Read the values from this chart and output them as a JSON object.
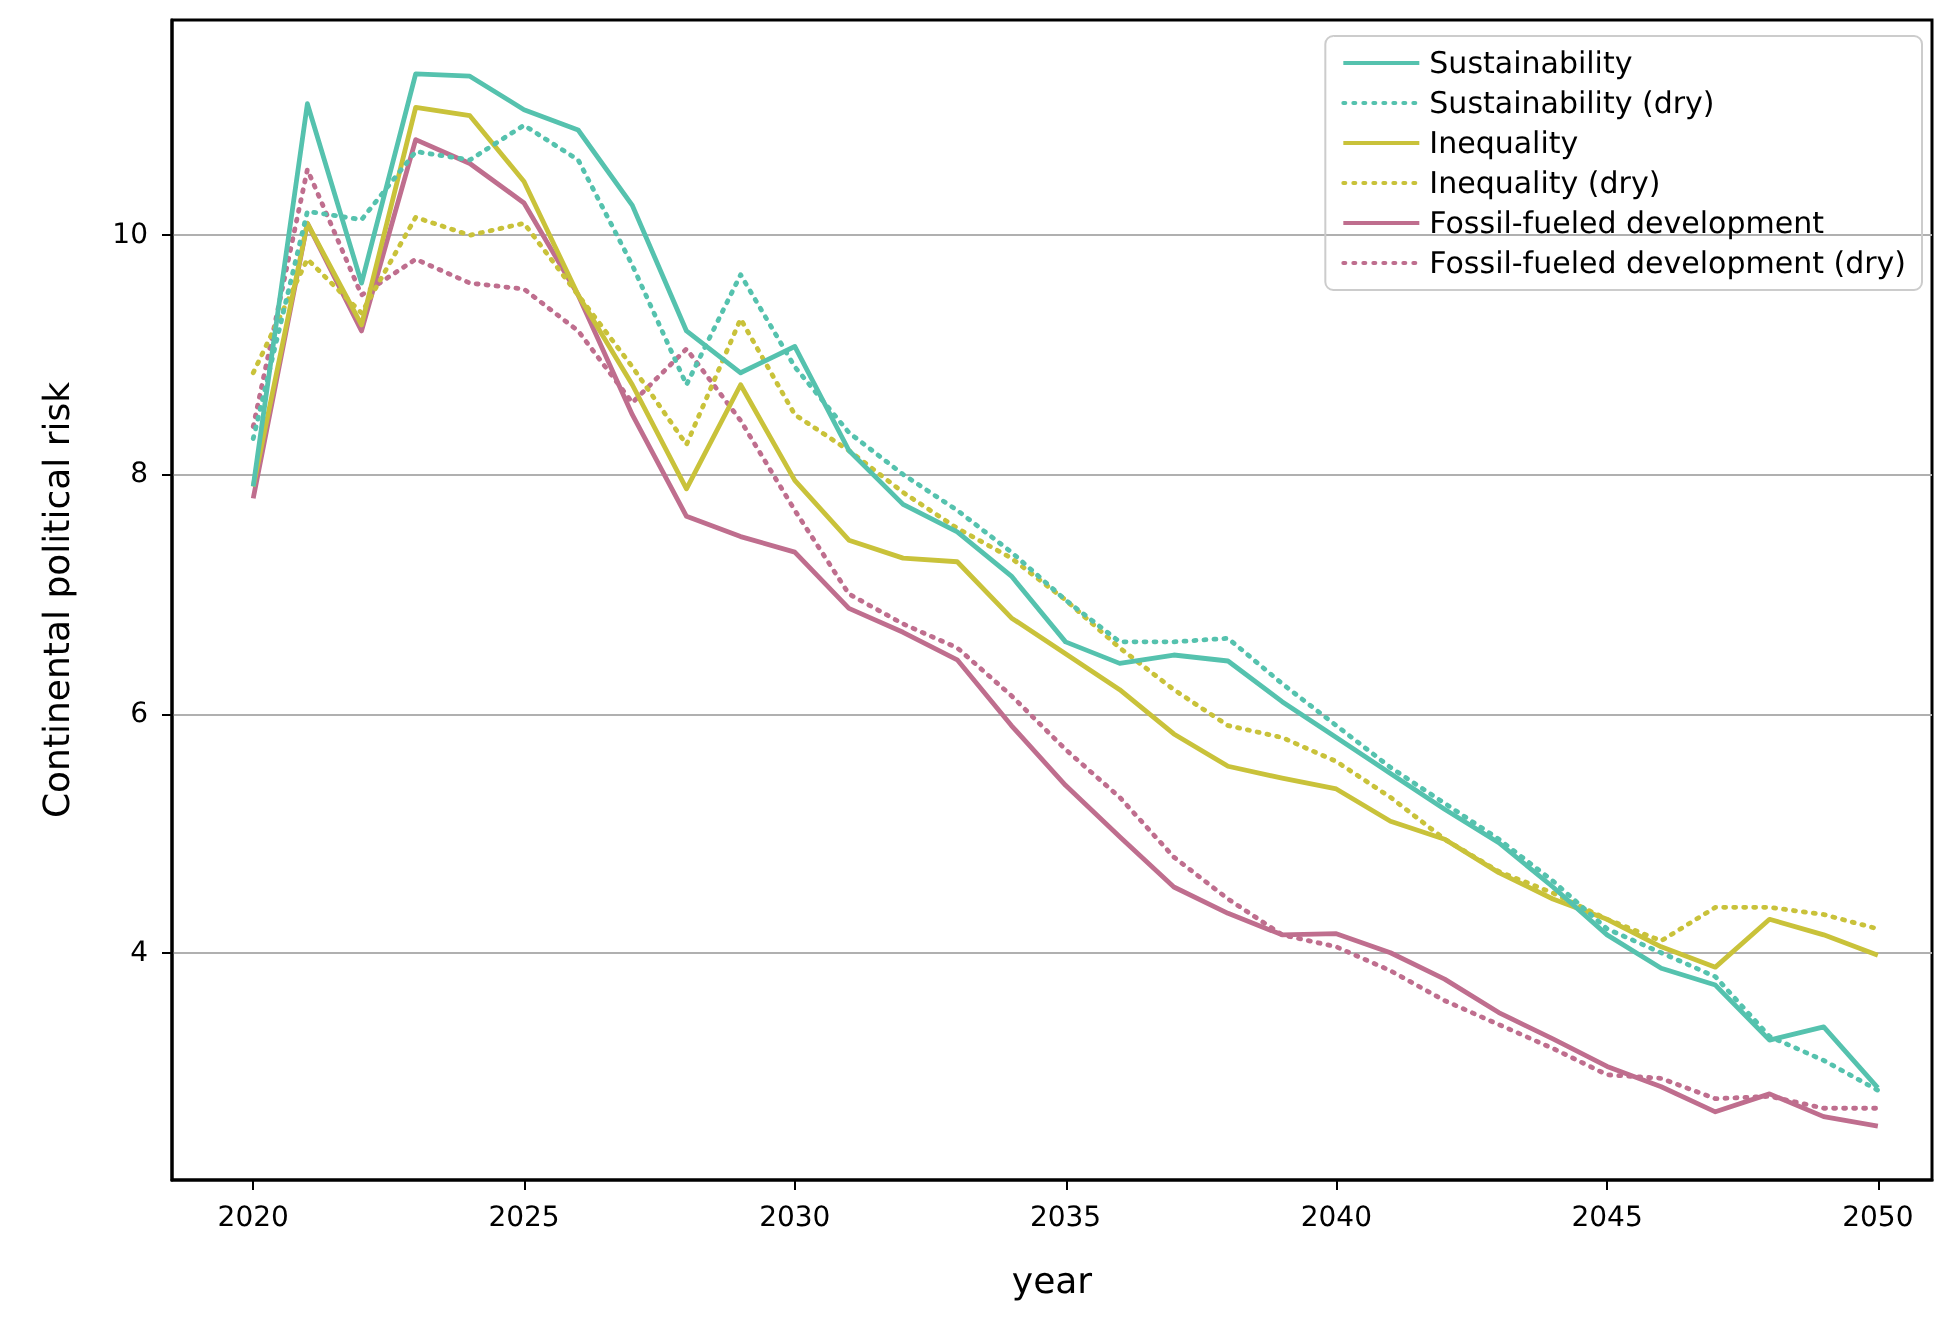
{
  "chart_data": {
    "type": "line",
    "xlabel": "year",
    "ylabel": "Continental political risk",
    "x": [
      2020,
      2021,
      2022,
      2023,
      2024,
      2025,
      2026,
      2027,
      2028,
      2029,
      2030,
      2031,
      2032,
      2033,
      2034,
      2035,
      2036,
      2037,
      2038,
      2039,
      2040,
      2041,
      2042,
      2043,
      2044,
      2045,
      2046,
      2047,
      2048,
      2049,
      2050
    ],
    "xlim": [
      2018.5,
      2051
    ],
    "xticks": [
      2020,
      2025,
      2030,
      2035,
      2040,
      2045,
      2050
    ],
    "ylim": [
      2.1,
      11.8
    ],
    "yticks": [
      4,
      6,
      8,
      10
    ],
    "grid": "y",
    "legend": "top right",
    "marker": "none",
    "series": [
      {
        "name": "Sustainability",
        "color": "#55c2ae",
        "line_style": "solid",
        "values": [
          7.9,
          11.1,
          9.6,
          11.35,
          11.33,
          11.05,
          10.88,
          10.25,
          9.2,
          8.85,
          9.07,
          8.2,
          7.75,
          7.52,
          7.15,
          6.6,
          6.42,
          6.49,
          6.44,
          6.1,
          5.8,
          5.5,
          5.2,
          4.92,
          4.55,
          4.15,
          3.87,
          3.73,
          3.27,
          3.38,
          2.87
        ]
      },
      {
        "name": "Sustainability (dry)",
        "color": "#55c2ae",
        "line_style": "dotted",
        "values": [
          8.3,
          10.2,
          10.13,
          10.7,
          10.63,
          10.92,
          10.63,
          9.75,
          8.75,
          9.67,
          8.9,
          8.35,
          8.0,
          7.7,
          7.35,
          6.95,
          6.6,
          6.6,
          6.63,
          6.25,
          5.9,
          5.55,
          5.25,
          4.95,
          4.6,
          4.2,
          4.0,
          3.8,
          3.3,
          3.1,
          2.85
        ]
      },
      {
        "name": "Inequality",
        "color": "#c9c23a",
        "line_style": "solid",
        "values": [
          7.9,
          10.1,
          9.25,
          11.07,
          11.0,
          10.45,
          9.5,
          8.75,
          7.88,
          8.75,
          7.95,
          7.45,
          7.3,
          7.27,
          6.8,
          6.5,
          6.2,
          5.83,
          5.56,
          5.46,
          5.37,
          5.1,
          4.95,
          4.67,
          4.45,
          4.28,
          4.05,
          3.88,
          4.28,
          4.15,
          3.98
        ]
      },
      {
        "name": "Inequality (dry)",
        "color": "#c9c23a",
        "line_style": "dotted",
        "values": [
          8.85,
          9.8,
          9.35,
          10.15,
          10.0,
          10.1,
          9.5,
          8.9,
          8.25,
          9.3,
          8.5,
          8.2,
          7.85,
          7.55,
          7.3,
          6.95,
          6.55,
          6.2,
          5.9,
          5.8,
          5.6,
          5.3,
          4.95,
          4.68,
          4.5,
          4.28,
          4.1,
          4.38,
          4.38,
          4.32,
          4.2
        ]
      },
      {
        "name": "Fossil-fueled development",
        "color": "#bf6e8e",
        "line_style": "solid",
        "values": [
          7.8,
          10.1,
          9.2,
          10.8,
          10.6,
          10.27,
          9.5,
          8.5,
          7.65,
          7.48,
          7.35,
          6.88,
          6.68,
          6.45,
          5.9,
          5.4,
          4.97,
          4.55,
          4.33,
          4.15,
          4.16,
          4.0,
          3.78,
          3.5,
          3.28,
          3.05,
          2.88,
          2.67,
          2.82,
          2.63,
          2.55
        ]
      },
      {
        "name": "Fossil-fueled development (dry)",
        "color": "#bf6e8e",
        "line_style": "dotted",
        "values": [
          8.4,
          10.55,
          9.5,
          9.8,
          9.6,
          9.55,
          9.2,
          8.6,
          9.05,
          8.45,
          7.7,
          7.0,
          6.75,
          6.55,
          6.15,
          5.7,
          5.3,
          4.8,
          4.45,
          4.15,
          4.05,
          3.85,
          3.6,
          3.4,
          3.2,
          2.98,
          2.95,
          2.78,
          2.8,
          2.7,
          2.7
        ]
      }
    ]
  }
}
